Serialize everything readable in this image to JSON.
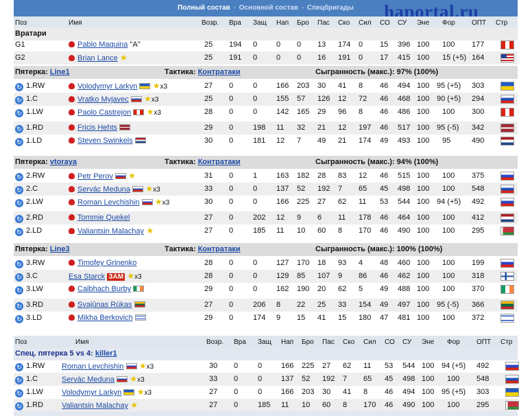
{
  "tabs": {
    "active": "Полный состав",
    "sep": "-",
    "t2": "Основной состав",
    "t3": "Спецбригады"
  },
  "logo": "haportal.ru",
  "cols": {
    "pos": "Поз",
    "name": "Имя",
    "age": "Возр.",
    "vra": "Вра",
    "zash": "Защ",
    "nap": "Нап",
    "bro": "Бро",
    "pas": "Пас",
    "sko": "Ско",
    "sil": "Сил",
    "so": "СО",
    "su": "СУ",
    "ene": "Эне",
    "for": "Фор",
    "opt": "ОПТ",
    "str": "Стр"
  },
  "goalies": {
    "title": "Вратари",
    "rows": [
      {
        "pos": "G1",
        "name": "Pablo Maquina",
        "extra": "\"A\"",
        "flag": "f-peru",
        "v": [
          "25",
          "194",
          "0",
          "0",
          "0",
          "13",
          "174",
          "0",
          "15",
          "396",
          "100",
          "100",
          "177"
        ]
      },
      {
        "pos": "G2",
        "name": "Brian Lance",
        "star": true,
        "flag": "f-usa",
        "v": [
          "25",
          "191",
          "0",
          "0",
          "0",
          "16",
          "191",
          "0",
          "17",
          "415",
          "100",
          "100",
          "164"
        ],
        "fmod": "(+5)"
      }
    ]
  },
  "lines": [
    {
      "label": "Пятерка:",
      "lname": "Line1",
      "tact": "Тактика:",
      "tname": "Контратаки",
      "play": "Сыгранность (макс.): 97% (100%)",
      "rows": [
        {
          "pos": "1.RW",
          "name": "Volodymyr Larkyn",
          "sflag": "f-ukr",
          "star": true,
          "x3": "x3",
          "flag": "f-ukr",
          "v": [
            "27",
            "0",
            "0",
            "166",
            "203",
            "30",
            "41",
            "8",
            "46",
            "494",
            "100"
          ],
          "for": "95",
          "fmod": "(+5)",
          "opt": "303"
        },
        {
          "pos": "1.C",
          "name": "Vratko Myjavec",
          "sflag": "f-svk",
          "star": true,
          "x3": "x3",
          "flag": "f-svk",
          "v": [
            "25",
            "0",
            "0",
            "155",
            "57",
            "126",
            "12",
            "72",
            "46",
            "468",
            "100"
          ],
          "for": "90",
          "fmod": "(+5)",
          "opt": "294"
        },
        {
          "pos": "1.LW",
          "name": "Paolo Castrejon",
          "sflag": "f-peru",
          "star": true,
          "x3": "x3",
          "flag": "f-peru",
          "v": [
            "28",
            "0",
            "0",
            "142",
            "165",
            "29",
            "96",
            "8",
            "46",
            "486",
            "100"
          ],
          "for": "100",
          "fmod": "",
          "opt": "300"
        },
        {
          "pos": "1.RD",
          "name": "Fricis Hehts",
          "sflag": "f-lat",
          "flag": "f-lat",
          "v": [
            "29",
            "0",
            "198",
            "11",
            "32",
            "21",
            "12",
            "197",
            "46",
            "517",
            "100"
          ],
          "for": "95",
          "fmod": "(-5)",
          "opt": "342"
        },
        {
          "pos": "1.LD",
          "name": "Steven Swinkels",
          "sflag": "f-ned",
          "flag": "f-ned",
          "v": [
            "30",
            "0",
            "181",
            "12",
            "7",
            "49",
            "21",
            "174",
            "49",
            "493",
            "100"
          ],
          "for": "95",
          "fmod": "",
          "opt": "490"
        }
      ]
    },
    {
      "label": "Пятерка:",
      "lname": "vtoraya",
      "tact": "Тактика:",
      "tname": "Контратаки",
      "play": "Сыгранность (макс.): 94% (100%)",
      "rows": [
        {
          "pos": "2.RW",
          "name": "Petr Perov",
          "sflag": "f-rus",
          "star": true,
          "flag": "f-rus",
          "v": [
            "31",
            "0",
            "1",
            "163",
            "182",
            "28",
            "83",
            "12",
            "46",
            "515",
            "100"
          ],
          "for": "100",
          "fmod": "",
          "opt": "375"
        },
        {
          "pos": "2.C",
          "name": "Servác Meduna",
          "sflag": "f-svk",
          "star": true,
          "x3": "x3",
          "flag": "f-svk",
          "v": [
            "33",
            "0",
            "0",
            "137",
            "52",
            "192",
            "7",
            "65",
            "45",
            "498",
            "100"
          ],
          "for": "100",
          "fmod": "",
          "opt": "548"
        },
        {
          "pos": "2.LW",
          "name": "Roman Levchishin",
          "sflag": "f-rus",
          "star": true,
          "x3": "x3",
          "flag": "f-rus",
          "v": [
            "30",
            "0",
            "0",
            "166",
            "225",
            "27",
            "62",
            "11",
            "53",
            "544",
            "100"
          ],
          "for": "94",
          "fmod": "(+5)",
          "opt": "492"
        },
        {
          "pos": "2.RD",
          "name": "Tommie Quekel",
          "flag": "f-ned",
          "v": [
            "27",
            "0",
            "202",
            "12",
            "9",
            "6",
            "11",
            "178",
            "46",
            "464",
            "100"
          ],
          "for": "100",
          "fmod": "",
          "opt": "412"
        },
        {
          "pos": "2.LD",
          "name": "Valiantsin Malachay",
          "star": true,
          "flag": "f-blr",
          "v": [
            "27",
            "0",
            "185",
            "11",
            "10",
            "60",
            "8",
            "170",
            "46",
            "490",
            "100"
          ],
          "for": "100",
          "fmod": "",
          "opt": "295"
        }
      ]
    },
    {
      "label": "Пятерка:",
      "lname": "Line3",
      "tact": "Тактика:",
      "tname": "Контратаки",
      "play": "Сыгранность (макс.): 100% (100%)",
      "rows": [
        {
          "pos": "3.RW",
          "name": "Timofey Grinenko",
          "flag": "f-rus",
          "v": [
            "28",
            "0",
            "0",
            "127",
            "170",
            "18",
            "93",
            "4",
            "48",
            "460",
            "100"
          ],
          "for": "100",
          "fmod": "",
          "opt": "199"
        },
        {
          "pos": "3.C",
          "name": "Esa Starck",
          "tag": "ЗАМ",
          "star": true,
          "x3": "x3",
          "flag": "f-fin",
          "v": [
            "28",
            "0",
            "0",
            "129",
            "85",
            "107",
            "9",
            "86",
            "46",
            "462",
            "100"
          ],
          "for": "100",
          "fmod": "",
          "opt": "318"
        },
        {
          "pos": "3.LW",
          "name": "Calbhach Burby",
          "sflag": "f-irl",
          "flag": "f-irl",
          "v": [
            "29",
            "0",
            "0",
            "162",
            "190",
            "20",
            "62",
            "5",
            "49",
            "488",
            "100"
          ],
          "for": "100",
          "fmod": "",
          "opt": "370"
        },
        {
          "pos": "3.RD",
          "name": "Svajūnas Rūkas",
          "sflag": "f-ltu",
          "flag": "f-ltu",
          "v": [
            "27",
            "0",
            "206",
            "8",
            "22",
            "25",
            "33",
            "154",
            "49",
            "497",
            "100"
          ],
          "for": "95",
          "fmod": "(-5)",
          "opt": "366"
        },
        {
          "pos": "3.LD",
          "name": "Mikha Berkovich",
          "sflag": "f-isr",
          "flag": "f-isr",
          "v": [
            "29",
            "0",
            "174",
            "9",
            "15",
            "41",
            "15",
            "180",
            "47",
            "481",
            "100"
          ],
          "for": "100",
          "fmod": "",
          "opt": "372"
        }
      ]
    }
  ],
  "special": {
    "label": "Спец. пятерка 5 vs 4:",
    "lname": "killer1",
    "rows": [
      {
        "pos": "1.RW",
        "name": "Roman Levchishin",
        "sflag": "f-rus",
        "star": true,
        "x3": "x3",
        "flag": "f-rus",
        "v": [
          "30",
          "0",
          "0",
          "166",
          "225",
          "27",
          "62",
          "11",
          "53",
          "544",
          "100"
        ],
        "for": "94",
        "fmod": "(+5)",
        "opt": "492"
      },
      {
        "pos": "1.C",
        "name": "Servác Meduna",
        "sflag": "f-svk",
        "star": true,
        "x3": "x3",
        "flag": "f-svk",
        "v": [
          "33",
          "0",
          "0",
          "137",
          "52",
          "192",
          "7",
          "65",
          "45",
          "498",
          "100"
        ],
        "for": "100",
        "fmod": "",
        "opt": "548"
      },
      {
        "pos": "1.LW",
        "name": "Volodymyr Larkyn",
        "sflag": "f-ukr",
        "star": true,
        "x3": "x3",
        "flag": "f-ukr",
        "v": [
          "27",
          "0",
          "0",
          "166",
          "203",
          "30",
          "41",
          "8",
          "46",
          "494",
          "100"
        ],
        "for": "95",
        "fmod": "(+5)",
        "opt": "303"
      },
      {
        "pos": "1.RD",
        "name": "Valiantsin Malachay",
        "star": true,
        "flag": "f-blr",
        "v": [
          "27",
          "0",
          "185",
          "11",
          "10",
          "60",
          "8",
          "170",
          "46",
          "490",
          "100"
        ],
        "for": "100",
        "fmod": "",
        "opt": "295"
      }
    ]
  }
}
